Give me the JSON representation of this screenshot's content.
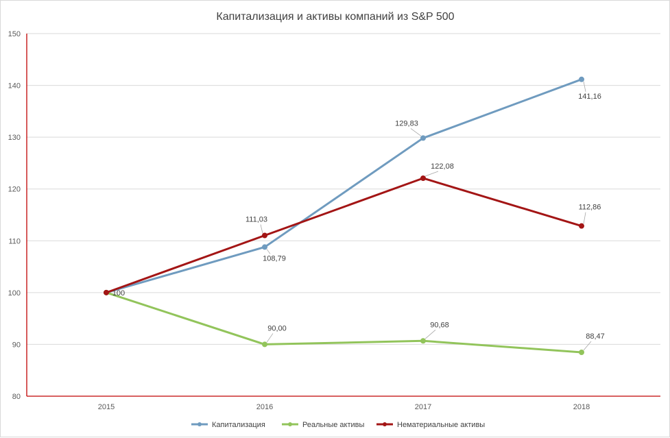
{
  "chart_data": {
    "type": "line",
    "title": "Капитализация и активы компаний из S&P 500",
    "xlabel": "",
    "ylabel": "",
    "categories": [
      "2015",
      "2016",
      "2017",
      "2018"
    ],
    "ylim": [
      80,
      150
    ],
    "yticks": [
      "80",
      "90",
      "100",
      "110",
      "120",
      "130",
      "140",
      "150"
    ],
    "grid": true,
    "legend_position": "bottom",
    "series": [
      {
        "name": "Капитализация",
        "color": "#6f9bbf",
        "values": [
          100,
          108.79,
          129.83,
          141.16
        ],
        "labels": [
          "",
          "108,79",
          "129,83",
          "141,16"
        ]
      },
      {
        "name": "Реальные активы",
        "color": "#92c45b",
        "values": [
          100,
          90.0,
          90.68,
          88.47
        ],
        "labels": [
          "",
          "90,00",
          "90,68",
          "88,47"
        ]
      },
      {
        "name": "Нематериальные активы",
        "color": "#a31515",
        "values": [
          100,
          111.03,
          122.08,
          112.86
        ],
        "labels": [
          "100",
          "111,03",
          "122,08",
          "112,86"
        ]
      }
    ]
  }
}
